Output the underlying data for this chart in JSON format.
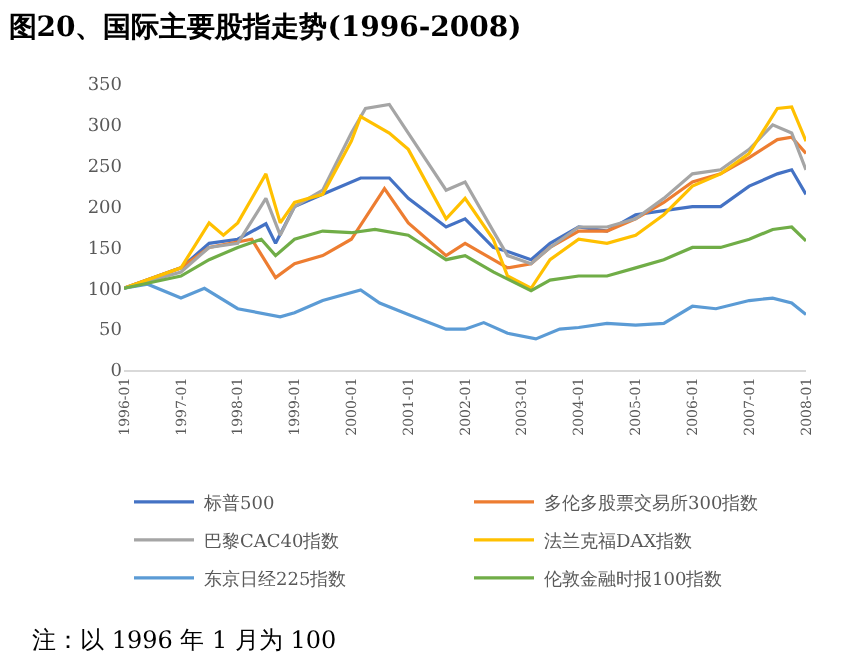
{
  "chart_data": {
    "type": "line",
    "title": "图20、国际主要股指走势(1996-2008)",
    "annotations": [
      "注：以 1996 年 1 月为 100"
    ],
    "xlim": [
      "1996-01",
      "2008-01"
    ],
    "xticks": [
      "1996-01",
      "1997-01",
      "1998-01",
      "1999-01",
      "2000-01",
      "2001-01",
      "2002-01",
      "2003-01",
      "2004-01",
      "2005-01",
      "2006-01",
      "2007-01",
      "2008-01"
    ],
    "ylim": [
      0,
      350
    ],
    "yticks": [
      0,
      50,
      100,
      150,
      200,
      250,
      300,
      350
    ],
    "grid": false,
    "legend": "bottom",
    "marker": "none",
    "line_style": "solid",
    "series": [
      {
        "name": "标普500",
        "color": "#4472c4",
        "x": [
          "1996-01",
          "1997-01",
          "1997-07",
          "1998-01",
          "1998-07",
          "1998-09",
          "1999-01",
          "1999-07",
          "2000-03",
          "2000-09",
          "2001-01",
          "2001-09",
          "2002-01",
          "2002-07",
          "2002-10",
          "2003-03",
          "2003-07",
          "2004-01",
          "2004-07",
          "2005-01",
          "2005-07",
          "2006-01",
          "2006-07",
          "2007-01",
          "2007-07",
          "2007-10",
          "2008-01"
        ],
        "values": [
          100,
          125,
          155,
          160,
          179,
          155,
          200,
          215,
          235,
          235,
          210,
          175,
          185,
          150,
          145,
          135,
          155,
          175,
          170,
          190,
          195,
          200,
          200,
          225,
          240,
          245,
          215
        ]
      },
      {
        "name": "多伦多股票交易所300指数",
        "color": "#ed7d31",
        "x": [
          "1996-01",
          "1997-01",
          "1997-07",
          "1998-04",
          "1998-09",
          "1999-01",
          "1999-07",
          "2000-01",
          "2000-08",
          "2001-01",
          "2001-09",
          "2002-01",
          "2002-07",
          "2002-10",
          "2003-03",
          "2003-07",
          "2004-01",
          "2004-07",
          "2005-01",
          "2005-07",
          "2006-01",
          "2006-07",
          "2007-01",
          "2007-07",
          "2007-10",
          "2008-01"
        ],
        "values": [
          100,
          125,
          150,
          160,
          113,
          130,
          140,
          160,
          222,
          180,
          140,
          155,
          135,
          125,
          130,
          150,
          170,
          170,
          185,
          205,
          230,
          240,
          260,
          282,
          285,
          265
        ]
      },
      {
        "name": "巴黎CAC40指数",
        "color": "#a5a5a5",
        "x": [
          "1996-01",
          "1997-01",
          "1997-07",
          "1998-01",
          "1998-07",
          "1998-10",
          "1999-01",
          "1999-07",
          "2000-01",
          "2000-04",
          "2000-09",
          "2001-01",
          "2001-09",
          "2002-01",
          "2002-07",
          "2002-10",
          "2003-03",
          "2003-07",
          "2004-01",
          "2004-07",
          "2005-01",
          "2005-07",
          "2006-01",
          "2006-07",
          "2007-01",
          "2007-06",
          "2007-10",
          "2008-01"
        ],
        "values": [
          100,
          120,
          150,
          155,
          210,
          165,
          200,
          220,
          290,
          320,
          325,
          290,
          220,
          230,
          170,
          140,
          130,
          150,
          175,
          175,
          185,
          210,
          240,
          245,
          270,
          300,
          290,
          245
        ]
      },
      {
        "name": "法兰克福DAX指数",
        "color": "#ffc000",
        "x": [
          "1996-01",
          "1997-01",
          "1997-07",
          "1997-10",
          "1998-01",
          "1998-07",
          "1998-10",
          "1999-01",
          "1999-07",
          "2000-01",
          "2000-03",
          "2000-09",
          "2001-01",
          "2001-09",
          "2002-01",
          "2002-07",
          "2002-10",
          "2003-03",
          "2003-07",
          "2004-01",
          "2004-07",
          "2005-01",
          "2005-07",
          "2006-01",
          "2006-07",
          "2007-01",
          "2007-07",
          "2007-10",
          "2008-01"
        ],
        "values": [
          100,
          125,
          180,
          165,
          180,
          240,
          180,
          205,
          215,
          280,
          310,
          290,
          270,
          185,
          210,
          160,
          115,
          100,
          135,
          160,
          155,
          165,
          190,
          225,
          240,
          265,
          320,
          322,
          280
        ]
      },
      {
        "name": "东京日经225指数",
        "color": "#5b9bd5",
        "x": [
          "1996-01",
          "1996-06",
          "1997-01",
          "1997-06",
          "1998-01",
          "1998-10",
          "1999-01",
          "1999-07",
          "2000-03",
          "2000-07",
          "2001-01",
          "2001-09",
          "2002-01",
          "2002-05",
          "2002-10",
          "2003-04",
          "2003-09",
          "2004-01",
          "2004-07",
          "2005-01",
          "2005-07",
          "2006-01",
          "2006-06",
          "2007-01",
          "2007-06",
          "2007-10",
          "2008-01"
        ],
        "values": [
          100,
          105,
          88,
          100,
          75,
          65,
          70,
          85,
          98,
          82,
          68,
          50,
          50,
          58,
          45,
          38,
          50,
          52,
          57,
          55,
          57,
          78,
          75,
          85,
          88,
          82,
          68
        ]
      },
      {
        "name": "伦敦金融时报100指数",
        "color": "#70ad47",
        "x": [
          "1996-01",
          "1997-01",
          "1997-07",
          "1998-01",
          "1998-06",
          "1998-09",
          "1999-01",
          "1999-07",
          "2000-01",
          "2000-06",
          "2001-01",
          "2001-09",
          "2002-01",
          "2002-07",
          "2003-03",
          "2003-07",
          "2004-01",
          "2004-07",
          "2005-01",
          "2005-07",
          "2006-01",
          "2006-07",
          "2007-01",
          "2007-06",
          "2007-10",
          "2008-01"
        ],
        "values": [
          100,
          115,
          135,
          150,
          160,
          140,
          160,
          170,
          168,
          172,
          165,
          135,
          140,
          120,
          97,
          110,
          115,
          115,
          125,
          135,
          150,
          150,
          160,
          172,
          175,
          158
        ]
      }
    ]
  }
}
